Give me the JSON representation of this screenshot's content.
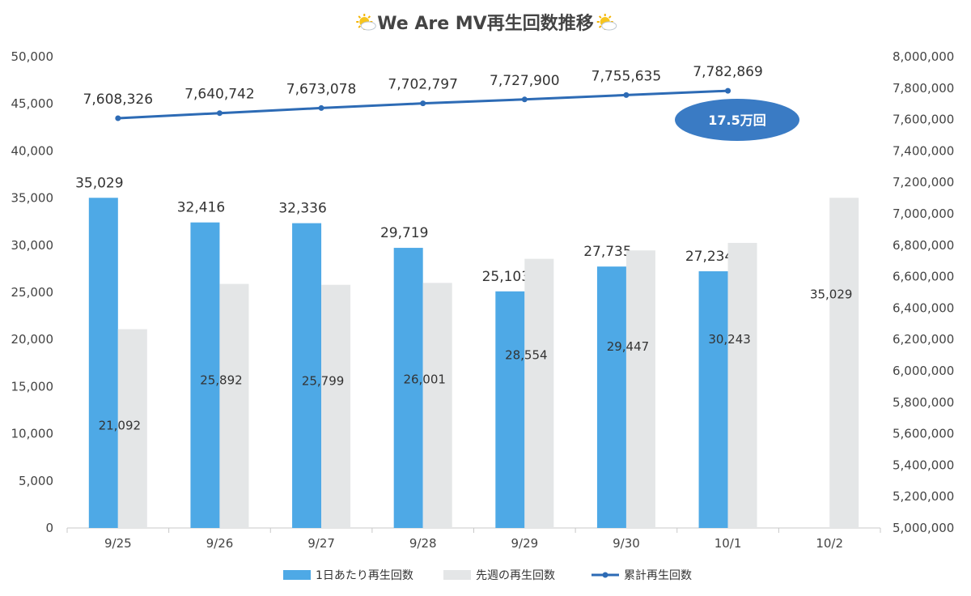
{
  "chart_data": {
    "type": "bar",
    "title": "We Are MV再生回数推移",
    "title_icon": "sun-behind-cloud-icon",
    "categories": [
      "9/25",
      "9/26",
      "9/27",
      "9/28",
      "9/29",
      "9/30",
      "10/1",
      "10/2"
    ],
    "ylim_left": [
      0,
      50000
    ],
    "yticks_left": [
      "0",
      "5,000",
      "10,000",
      "15,000",
      "20,000",
      "25,000",
      "30,000",
      "35,000",
      "40,000",
      "45,000",
      "50,000"
    ],
    "ylim_right": [
      5000000,
      8000000
    ],
    "yticks_right": [
      "5,000,000",
      "5,200,000",
      "5,400,000",
      "5,600,000",
      "5,800,000",
      "6,000,000",
      "6,200,000",
      "6,400,000",
      "6,600,000",
      "6,800,000",
      "7,000,000",
      "7,200,000",
      "7,400,000",
      "7,600,000",
      "7,800,000",
      "8,000,000"
    ],
    "series": [
      {
        "name": "1日あたり再生回数",
        "kind": "bar",
        "axis": "left",
        "color": "#4ea9e6",
        "values": [
          35029,
          32416,
          32336,
          29719,
          25103,
          27735,
          27234,
          null
        ],
        "labels": [
          "35,029",
          "32,416",
          "32,336",
          "29,719",
          "25,103",
          "27,735",
          "27,234",
          ""
        ]
      },
      {
        "name": "先週の再生回数",
        "kind": "bar",
        "axis": "left",
        "color": "#e4e6e7",
        "values": [
          21092,
          25892,
          25799,
          26001,
          28554,
          29447,
          30243,
          35029
        ],
        "labels": [
          "21,092",
          "25,892",
          "25,799",
          "26,001",
          "28,554",
          "29,447",
          "30,243",
          "35,029"
        ]
      },
      {
        "name": "累計再生回数",
        "kind": "line",
        "axis": "right",
        "color": "#2d6bb5",
        "values": [
          7608326,
          7640742,
          7673078,
          7702797,
          7727900,
          7755635,
          7782869,
          null
        ],
        "labels": [
          "7,608,326",
          "7,640,742",
          "7,673,078",
          "7,702,797",
          "7,727,900",
          "7,755,635",
          "7,782,869",
          ""
        ]
      }
    ],
    "annotation": {
      "text": "17.5万回",
      "color": "#3a7bc4"
    },
    "legend_position": "bottom",
    "grid": false
  }
}
